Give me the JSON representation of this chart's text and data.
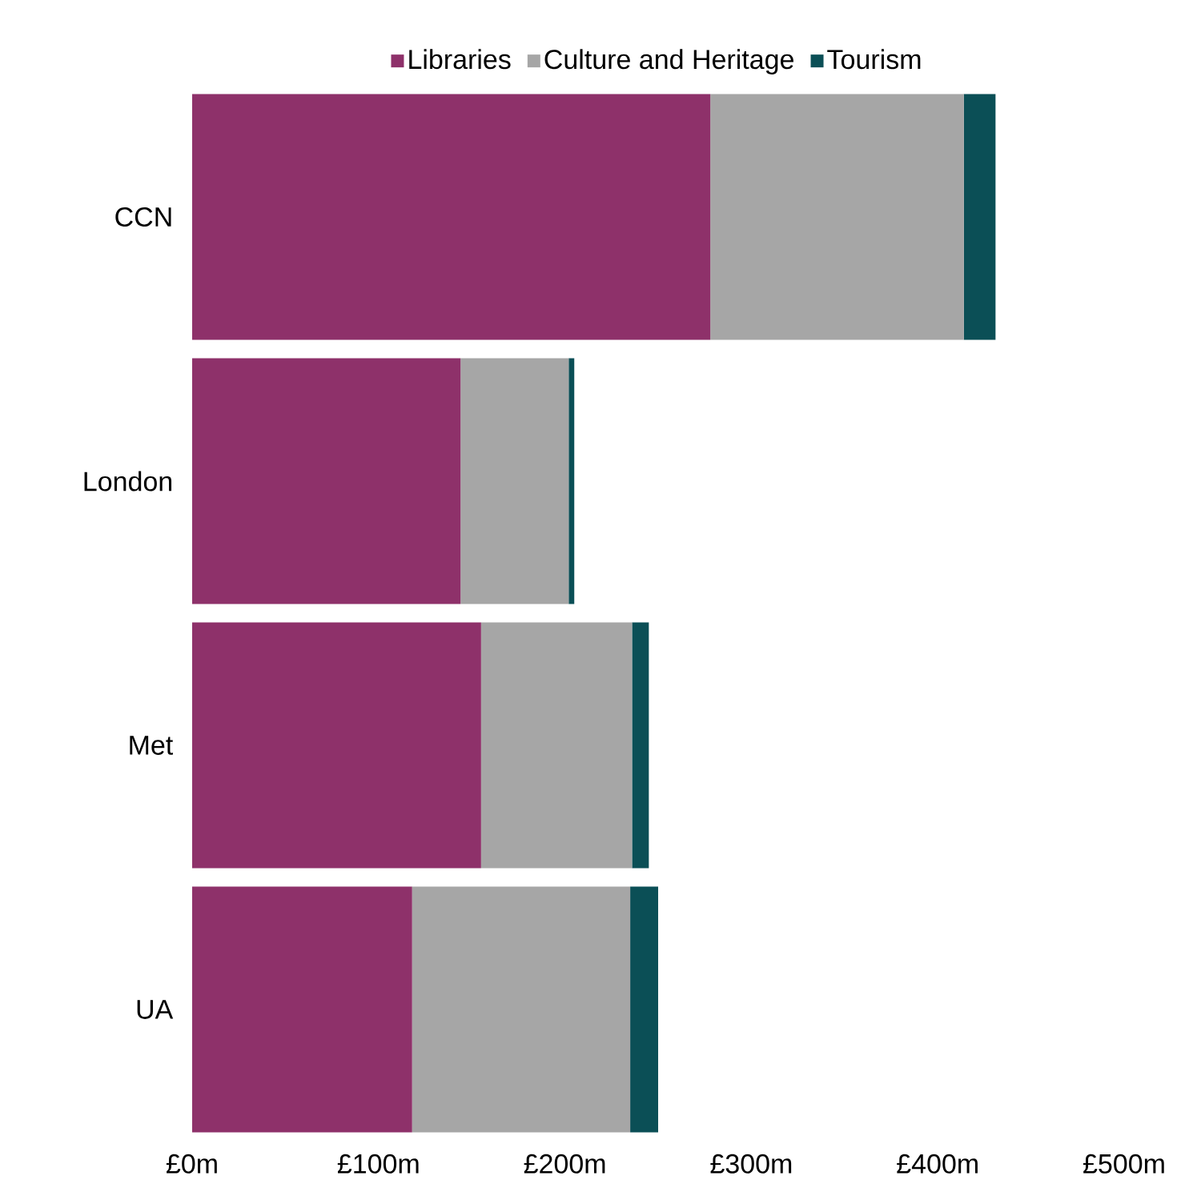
{
  "chart_data": {
    "type": "bar",
    "orientation": "horizontal",
    "stacked": true,
    "legend": "top",
    "categories": [
      "CCN",
      "London",
      "Met",
      "UA"
    ],
    "series": [
      {
        "name": "Libraries",
        "color": "#8e316a",
        "values": [
          278,
          144,
          155,
          118
        ]
      },
      {
        "name": "Culture and Heritage",
        "color": "#a6a6a6",
        "values": [
          136,
          58,
          81,
          117
        ]
      },
      {
        "name": "Tourism",
        "color": "#0b4f56",
        "values": [
          17,
          3,
          9,
          15
        ]
      }
    ],
    "xlim": [
      0,
      500
    ],
    "xticks": [
      {
        "value": 0,
        "label": "£0m"
      },
      {
        "value": 100,
        "label": "£100m"
      },
      {
        "value": 200,
        "label": "£200m"
      },
      {
        "value": 300,
        "label": "£300m"
      },
      {
        "value": 400,
        "label": "£400m"
      },
      {
        "value": 500,
        "label": "£500m"
      }
    ]
  }
}
